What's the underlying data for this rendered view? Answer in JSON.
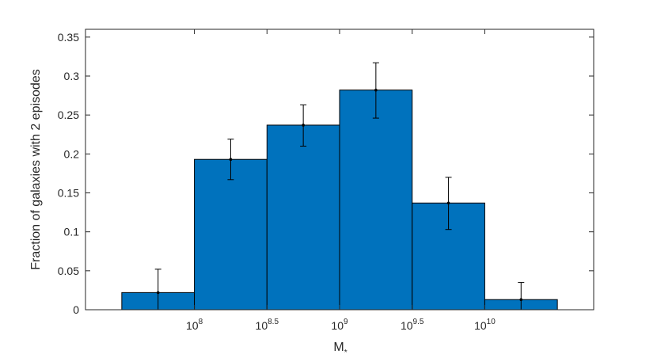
{
  "chart_data": {
    "type": "bar",
    "title": "",
    "xlabel": "M",
    "xlabel_subscript": "*",
    "ylabel": "Fraction of galaxies with 2 episodes",
    "x_scale": "log10",
    "bin_edges_log10": [
      7.5,
      8.0,
      8.5,
      9.0,
      9.5,
      10.0,
      10.5
    ],
    "xlim_log10": [
      7.25,
      10.75
    ],
    "x_ticks": [
      {
        "log10": 8.0,
        "base": "10",
        "exp": "8"
      },
      {
        "log10": 8.5,
        "base": "10",
        "exp": "8.5"
      },
      {
        "log10": 9.0,
        "base": "10",
        "exp": "9"
      },
      {
        "log10": 9.5,
        "base": "10",
        "exp": "9.5"
      },
      {
        "log10": 10.0,
        "base": "10",
        "exp": "10"
      }
    ],
    "values": [
      0.022,
      0.193,
      0.237,
      0.282,
      0.137,
      0.013
    ],
    "error_low": [
      0.0,
      0.167,
      0.21,
      0.246,
      0.103,
      0.0
    ],
    "error_high": [
      0.052,
      0.219,
      0.263,
      0.317,
      0.17,
      0.035
    ],
    "ylim": [
      0,
      0.36
    ],
    "y_ticks": [
      0,
      0.05,
      0.1,
      0.15,
      0.2,
      0.25,
      0.3,
      0.35
    ],
    "y_tick_labels": [
      "0",
      "0.05",
      "0.1",
      "0.15",
      "0.2",
      "0.25",
      "0.3",
      "0.35"
    ],
    "bar_color": "#0072BD",
    "bar_edge_color": "#000000",
    "errorbar_color": "#000000",
    "grid": false,
    "legend": "none"
  }
}
